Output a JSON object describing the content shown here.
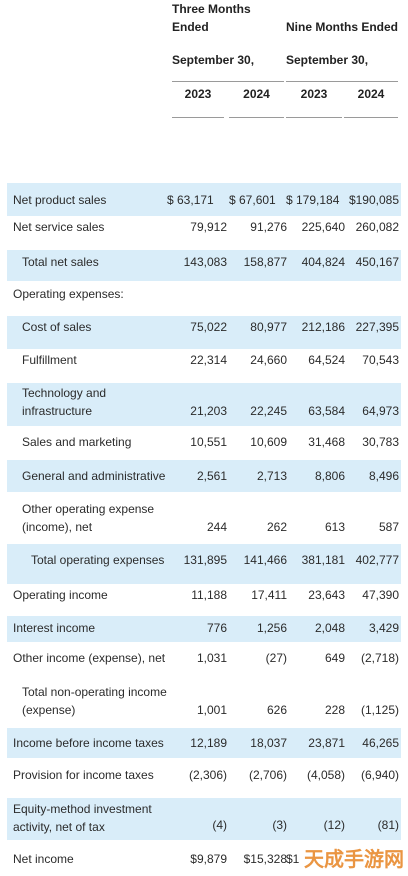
{
  "header": {
    "three_months": "Three Months Ended",
    "three_months_line1": "Three Months",
    "three_months_line2": "Ended",
    "nine_months": "Nine Months Ended",
    "period_left": "September 30,",
    "period_right": "September 30,",
    "years": [
      "2023",
      "2024",
      "2023",
      "2024"
    ]
  },
  "rows": [
    {
      "label": [
        "Net product sales"
      ],
      "values": [
        "$   63,171",
        "$  67,601",
        "$  179,184",
        "$190,085"
      ]
    },
    {
      "label": [
        "Net service sales"
      ],
      "values": [
        "79,912",
        "91,276",
        "225,640",
        "260,082"
      ]
    },
    {
      "label": [
        "Total net sales"
      ],
      "values": [
        "143,083",
        "158,877",
        "404,824",
        "450,167"
      ]
    },
    {
      "label": [
        "Operating expenses:"
      ],
      "values": [
        "",
        "",
        "",
        ""
      ]
    },
    {
      "label": [
        "Cost of sales"
      ],
      "values": [
        "75,022",
        "80,977",
        "212,186",
        "227,395"
      ]
    },
    {
      "label": [
        "Fulfillment"
      ],
      "values": [
        "22,314",
        "24,660",
        "64,524",
        "70,543"
      ]
    },
    {
      "label": [
        "Technology and",
        "infrastructure"
      ],
      "values": [
        "21,203",
        "22,245",
        "63,584",
        "64,973"
      ]
    },
    {
      "label": [
        "Sales and marketing"
      ],
      "values": [
        "10,551",
        "10,609",
        "31,468",
        "30,783"
      ]
    },
    {
      "label": [
        "General and administrative"
      ],
      "values": [
        "2,561",
        "2,713",
        "8,806",
        "8,496"
      ]
    },
    {
      "label": [
        "Other operating expense",
        "(income), net"
      ],
      "values": [
        "244",
        "262",
        "613",
        "587"
      ]
    },
    {
      "label": [
        "Total operating expenses"
      ],
      "values": [
        "131,895",
        "141,466",
        "381,181",
        "402,777"
      ]
    },
    {
      "label": [
        "Operating income"
      ],
      "values": [
        "11,188",
        "17,411",
        "23,643",
        "47,390"
      ]
    },
    {
      "label": [
        "Interest income"
      ],
      "values": [
        "776",
        "1,256",
        "2,048",
        "3,429"
      ]
    },
    {
      "label": [
        "Other income (expense), net"
      ],
      "values": [
        "1,031",
        "(27)",
        "649",
        "(2,718)"
      ]
    },
    {
      "label": [
        "Total non-operating income",
        "(expense)"
      ],
      "values": [
        "1,001",
        "626",
        "228",
        "(1,125)"
      ]
    },
    {
      "label": [
        "Income before income taxes"
      ],
      "values": [
        "12,189",
        "18,037",
        "23,871",
        "46,265"
      ]
    },
    {
      "label": [
        "Provision for income taxes"
      ],
      "values": [
        "(2,306)",
        "(2,706)",
        "(4,058)",
        "(6,940)"
      ]
    },
    {
      "label": [
        "Equity-method investment",
        "activity, net of tax"
      ],
      "values": [
        "(4)",
        "(3)",
        "(12)",
        "(81)"
      ]
    },
    {
      "label": [
        "Net income"
      ],
      "values": [
        "$9,879",
        "$15,328",
        "$1",
        ""
      ]
    }
  ],
  "watermark": "天成手游网"
}
